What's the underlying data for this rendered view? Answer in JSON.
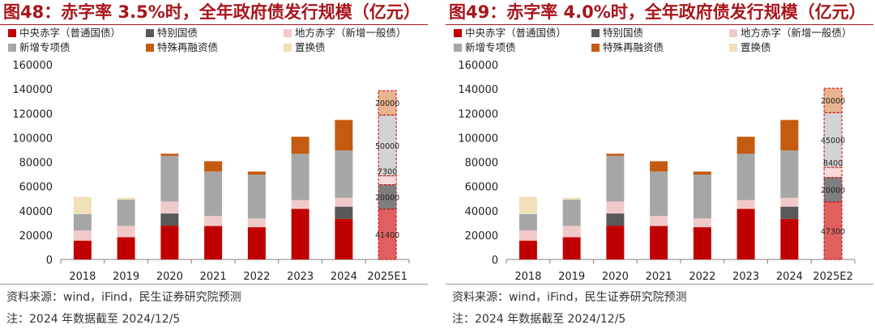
{
  "series_colors": {
    "central_deficit": "#c00000",
    "special_treasury": "#595959",
    "local_deficit": "#f2c9c9",
    "special_bonds": "#a6a6a6",
    "refinancing": "#c55a11",
    "replacement": "#f0e0b8",
    "forecast_central_deficit": "#e06060",
    "forecast_special_treasury": "#7f7f7f",
    "forecast_local_deficit": "#f6dada",
    "forecast_special_bonds": "#d3d3d3",
    "forecast_refinancing": "#e8b48f",
    "forecast_border": "#c00000"
  },
  "source_note": "资料来源：wind，iFind，民生证券研究院预测",
  "date_note": "注：2024 年数据截至 2024/12/5",
  "chart_data": [
    {
      "type": "stacked-bar",
      "title": "图48：赤字率 3.5%时，全年政府债发行规模（亿元）",
      "categories": [
        "2018",
        "2019",
        "2020",
        "2021",
        "2022",
        "2023",
        "2024",
        "2025E1"
      ],
      "ylim": [
        0,
        160000
      ],
      "yticks": [
        "0",
        "20000",
        "40000",
        "60000",
        "80000",
        "100000",
        "120000",
        "140000",
        "160000"
      ],
      "legend": [
        "中央赤字（普通国债）",
        "特别国债",
        "地方赤字（新增一般债）",
        "新增专项债",
        "特殊再融资债",
        "置换债"
      ],
      "series": [
        {
          "key": "central_deficit",
          "name": "中央赤字（普通国债）",
          "values": [
            15500,
            18300,
            27800,
            27500,
            26500,
            41600,
            33400,
            41400
          ]
        },
        {
          "key": "special_treasury",
          "name": "特别国债",
          "values": [
            0,
            0,
            10000,
            0,
            0,
            0,
            10000,
            20000
          ]
        },
        {
          "key": "local_deficit",
          "name": "地方赤字（新增一般债）",
          "values": [
            8300,
            9300,
            9800,
            8200,
            7200,
            7200,
            7200,
            7300
          ]
        },
        {
          "key": "special_bonds",
          "name": "新增专项债",
          "values": [
            13500,
            21500,
            37500,
            36500,
            36000,
            38000,
            39000,
            50000
          ]
        },
        {
          "key": "refinancing",
          "name": "特殊再融资债",
          "values": [
            0,
            0,
            1800,
            8500,
            2500,
            14000,
            25000,
            20000
          ]
        },
        {
          "key": "replacement",
          "name": "置换债",
          "values": [
            14000,
            1600,
            0,
            0,
            0,
            0,
            0,
            0
          ]
        }
      ],
      "forecast_index": 7,
      "bar_labels": [
        "41400",
        "20000",
        "7300",
        "50000",
        "20000"
      ]
    },
    {
      "type": "stacked-bar",
      "title": "图49：赤字率 4.0%时，全年政府债发行规模（亿元）",
      "categories": [
        "2018",
        "2019",
        "2020",
        "2021",
        "2022",
        "2023",
        "2024",
        "2025E2"
      ],
      "ylim": [
        0,
        160000
      ],
      "yticks": [
        "0",
        "20000",
        "40000",
        "60000",
        "80000",
        "100000",
        "120000",
        "140000",
        "160000"
      ],
      "legend": [
        "中央赤字（普通国债）",
        "特别国债",
        "地方赤字（新增一般债）",
        "新增专项债",
        "特殊再融资债",
        "置换债"
      ],
      "series": [
        {
          "key": "central_deficit",
          "name": "中央赤字（普通国债）",
          "values": [
            15500,
            18300,
            27800,
            27500,
            26500,
            41600,
            33400,
            47300
          ]
        },
        {
          "key": "special_treasury",
          "name": "特别国债",
          "values": [
            0,
            0,
            10000,
            0,
            0,
            0,
            10000,
            20000
          ]
        },
        {
          "key": "local_deficit",
          "name": "地方赤字（新增一般债）",
          "values": [
            8300,
            9300,
            9800,
            8200,
            7200,
            7200,
            7200,
            8400
          ]
        },
        {
          "key": "special_bonds",
          "name": "新增专项债",
          "values": [
            13500,
            21500,
            37500,
            36500,
            36000,
            38000,
            39000,
            45000
          ]
        },
        {
          "key": "refinancing",
          "name": "特殊再融资债",
          "values": [
            0,
            0,
            1800,
            8500,
            2500,
            14000,
            25000,
            20000
          ]
        },
        {
          "key": "replacement",
          "name": "置换债",
          "values": [
            14000,
            1600,
            0,
            0,
            0,
            0,
            0,
            0
          ]
        }
      ],
      "forecast_index": 7,
      "bar_labels": [
        "47300",
        "20000",
        "8400",
        "45000",
        "20000"
      ]
    }
  ]
}
